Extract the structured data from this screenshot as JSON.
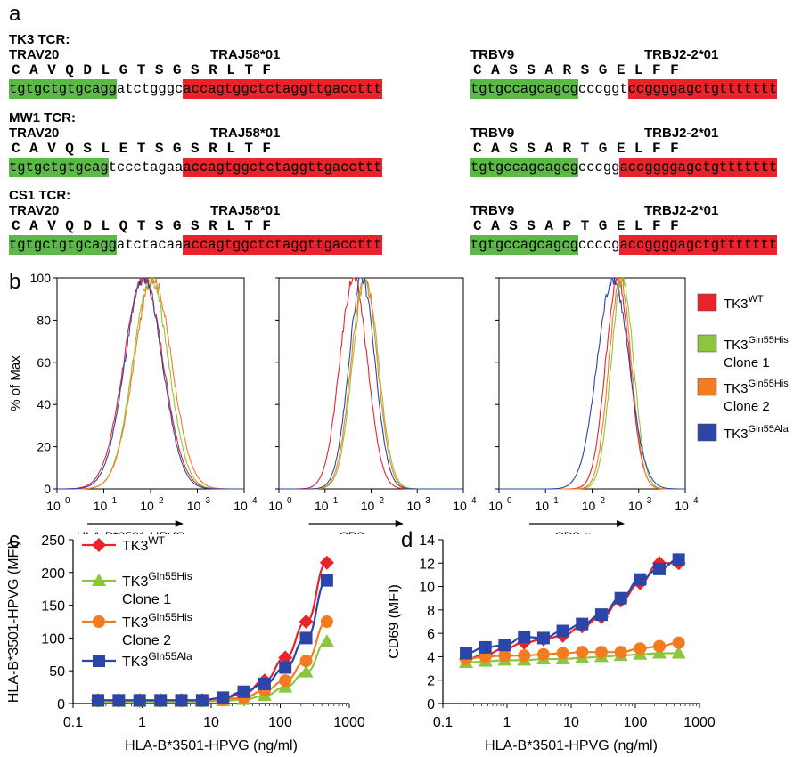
{
  "panel_a": {
    "letter": "a",
    "tcrs": [
      {
        "title": "TK3 TCR:",
        "alpha": {
          "v_gene": "TRAV20",
          "j_gene": "TRAJ58*01",
          "aa": [
            "C",
            "A",
            "V",
            "Q",
            "D",
            "L",
            "G",
            "T",
            "S",
            "G",
            "S",
            "R",
            "L",
            "T",
            "F"
          ],
          "seq_green": "tgtgctgtgcagg",
          "seq_mid": "atctgggc",
          "seq_red": "accagtggctctaggttgaccttt"
        },
        "beta": {
          "v_gene": "TRBV9",
          "j_gene": "TRBJ2-2*01",
          "aa": [
            "C",
            "A",
            "S",
            "S",
            "A",
            "R",
            "S",
            "G",
            "E",
            "L",
            "F",
            "F"
          ],
          "seq_green": "tgtgccagcagcg",
          "seq_mid": "cccggt",
          "seq_red": "ccggggagctgttttttt"
        }
      },
      {
        "title": "MW1 TCR:",
        "alpha": {
          "v_gene": "TRAV20",
          "j_gene": "TRAJ58*01",
          "aa": [
            "C",
            "A",
            "V",
            "Q",
            "S",
            "L",
            "E",
            "T",
            "S",
            "G",
            "S",
            "R",
            "L",
            "T",
            "F"
          ],
          "seq_green": "tgtgctgtgcag",
          "seq_mid": "tccctagaa",
          "seq_red": "accagtggctctaggttgaccttt"
        },
        "beta": {
          "v_gene": "TRBV9",
          "j_gene": "TRBJ2-2*01",
          "aa": [
            "C",
            "A",
            "S",
            "S",
            "A",
            "R",
            "T",
            "G",
            "E",
            "L",
            "F",
            "F"
          ],
          "seq_green": "tgtgccagcagcg",
          "seq_mid": "cccgg",
          "seq_red": "accggggagctgttttttt"
        }
      },
      {
        "title": "CS1 TCR:",
        "alpha": {
          "v_gene": "TRAV20",
          "j_gene": "TRAJ58*01",
          "aa": [
            "C",
            "A",
            "V",
            "Q",
            "D",
            "L",
            "Q",
            "T",
            "S",
            "G",
            "S",
            "R",
            "L",
            "T",
            "F"
          ],
          "seq_green": "tgtgctgtgcagg",
          "seq_mid": "atctacaa",
          "seq_red": "accagtggctctaggttgaccttt"
        },
        "beta": {
          "v_gene": "TRBV9",
          "j_gene": "TRBJ2-2*01",
          "aa": [
            "C",
            "A",
            "S",
            "S",
            "A",
            "P",
            "T",
            "G",
            "E",
            "L",
            "F",
            "F"
          ],
          "seq_green": "tgtgccagcagcg",
          "seq_mid": "ccccg",
          "seq_red": "accggggagctgttttttt"
        }
      }
    ]
  },
  "panel_b": {
    "letter": "b",
    "ylabel": "% of Max",
    "yticks": [
      "0",
      "20",
      "40",
      "60",
      "80",
      "100"
    ],
    "xticks": [
      "10",
      "10",
      "10",
      "10",
      "10"
    ],
    "xexps": [
      "0",
      "1",
      "2",
      "3",
      "4"
    ],
    "hist_xlabels": [
      "HLA-B*3501-HPVG",
      "CD3",
      "CD8 α"
    ],
    "legend": [
      {
        "base": "TK3",
        "sup": "WT",
        "line2": "",
        "color": "#e8232a"
      },
      {
        "base": "TK3",
        "sup": "Gln55His",
        "line2": "Clone 1",
        "color": "#8cc63f"
      },
      {
        "base": "TK3",
        "sup": "Gln55His",
        "line2": "Clone 2",
        "color": "#f47b20"
      },
      {
        "base": "TK3",
        "sup": "Gln55Ala",
        "line2": "",
        "color": "#2b46a8"
      }
    ]
  },
  "chart_data": [
    {
      "type": "line",
      "panel": "c",
      "xlabel": "HLA-B*3501-HPVG (ng/ml)",
      "ylabel": "HLA-B*3501-HPVG (MFI)",
      "xscale": "log",
      "xlim": [
        0.1,
        1000
      ],
      "ylim": [
        0,
        250
      ],
      "xticklabels": [
        "0.1",
        "1",
        "10",
        "100",
        "1000"
      ],
      "yticklabels": [
        "0",
        "50",
        "100",
        "150",
        "200",
        "250"
      ],
      "x": [
        0.23,
        0.46,
        0.92,
        1.85,
        3.7,
        7.4,
        14.8,
        29.6,
        59.3,
        118.5,
        237,
        474
      ],
      "legend_position": "top-left",
      "series": [
        {
          "name": "TK3WT",
          "color": "#e8232a",
          "marker": "diamond",
          "values": [
            5,
            5,
            5,
            5,
            5,
            5,
            8,
            15,
            35,
            70,
            125,
            215
          ]
        },
        {
          "name": "TK3Gln55His Clone 1",
          "color": "#8cc63f",
          "marker": "triangle",
          "values": [
            3,
            3,
            3,
            3,
            3,
            3,
            4,
            6,
            12,
            25,
            48,
            95
          ]
        },
        {
          "name": "TK3Gln55His Clone 2",
          "color": "#f47b20",
          "marker": "circle",
          "values": [
            4,
            4,
            4,
            4,
            4,
            4,
            6,
            9,
            20,
            35,
            65,
            125
          ]
        },
        {
          "name": "TK3Gln55Ala",
          "color": "#2b46a8",
          "marker": "square",
          "values": [
            5,
            5,
            5,
            5,
            5,
            5,
            9,
            18,
            30,
            55,
            100,
            188
          ]
        }
      ]
    },
    {
      "type": "line",
      "panel": "d",
      "xlabel": "HLA-B*3501-HPVG (ng/ml)",
      "ylabel": "CD69 (MFI)",
      "xscale": "log",
      "xlim": [
        0.1,
        1000
      ],
      "ylim": [
        0,
        14
      ],
      "xticklabels": [
        "0.1",
        "1",
        "10",
        "100",
        "1000"
      ],
      "yticklabels": [
        "0",
        "2",
        "4",
        "6",
        "8",
        "10",
        "12",
        "14"
      ],
      "x": [
        0.23,
        0.46,
        0.92,
        1.85,
        3.7,
        7.4,
        14.8,
        29.6,
        59.3,
        118.5,
        237,
        474
      ],
      "series": [
        {
          "name": "TK3WT",
          "color": "#e8232a",
          "marker": "diamond",
          "values": [
            3.8,
            4.2,
            4.7,
            5.2,
            5.5,
            5.8,
            6.6,
            7.4,
            8.8,
            10.3,
            12.0,
            12.0
          ]
        },
        {
          "name": "TK3Gln55His Clone 1",
          "color": "#8cc63f",
          "marker": "triangle",
          "values": [
            3.5,
            3.6,
            3.7,
            3.7,
            3.8,
            3.8,
            3.9,
            4.0,
            4.1,
            4.2,
            4.3,
            4.3
          ]
        },
        {
          "name": "TK3Gln55His Clone 2",
          "color": "#f47b20",
          "marker": "circle",
          "values": [
            3.8,
            4.0,
            4.1,
            4.1,
            4.2,
            4.3,
            4.4,
            4.4,
            4.4,
            4.7,
            4.9,
            5.2
          ]
        },
        {
          "name": "TK3Gln55Ala",
          "color": "#2b46a8",
          "marker": "square",
          "values": [
            4.3,
            4.8,
            5.0,
            5.7,
            5.6,
            6.2,
            6.8,
            7.6,
            9.0,
            10.6,
            11.5,
            12.3
          ]
        }
      ]
    }
  ],
  "panel_c": {
    "letter": "c",
    "legend": [
      {
        "base": "TK3",
        "sup": "WT",
        "line2": "",
        "color": "#e8232a",
        "marker": "diamond"
      },
      {
        "base": "TK3",
        "sup": "Gln55His",
        "line2": "Clone 1",
        "color": "#8cc63f",
        "marker": "triangle"
      },
      {
        "base": "TK3",
        "sup": "Gln55His",
        "line2": "Clone 2",
        "color": "#f47b20",
        "marker": "circle"
      },
      {
        "base": "TK3",
        "sup": "Gln55Ala",
        "line2": "",
        "color": "#2b46a8",
        "marker": "square"
      }
    ]
  },
  "panel_d": {
    "letter": "d"
  }
}
